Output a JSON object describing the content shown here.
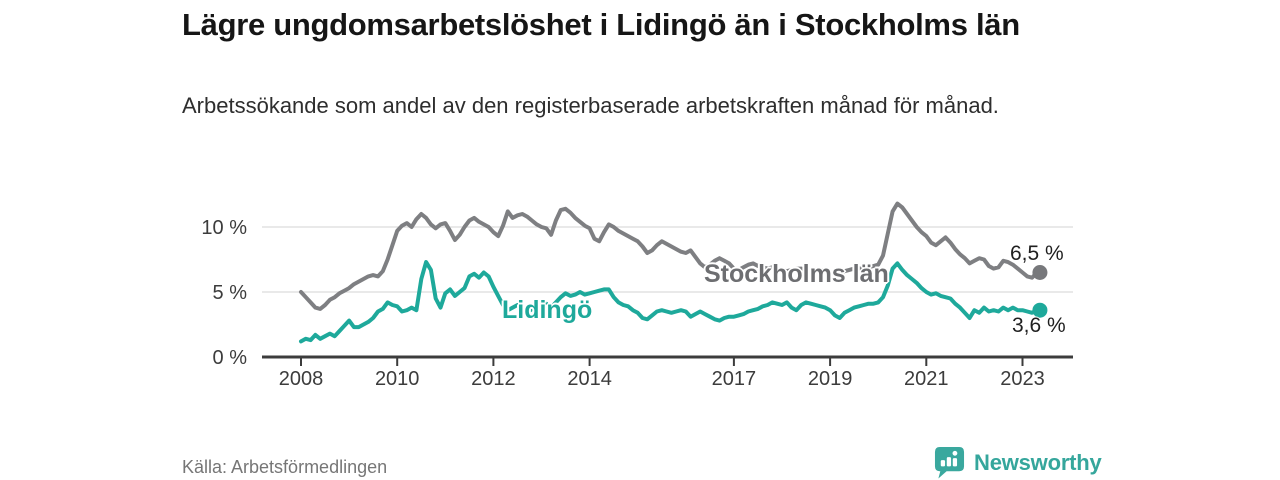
{
  "header": {
    "title": "Lägre ungdomsarbetslöshet i Lidingö än i Stockholms län",
    "subtitle": "Arbetssökande som andel av den registerbaserade arbetskraften månad för månad."
  },
  "footer": {
    "source": "Källa: Arbetsförmedlingen",
    "logo_text": "Newsworthy",
    "logo_icon": "bar-chart-speech-bubble-icon"
  },
  "colors": {
    "stockholm_line": "#7e7f82",
    "stockholm_label": "#6d6e71",
    "stockholm_dot": "#77787b",
    "lidingo_teal": "#1ea99b",
    "logo_teal": "#3aa89e",
    "axis_dark": "#3c3c3c",
    "gridline": "#dcdcdc",
    "axis_text": "#3c3c3c",
    "value_label_text": "#1f1f1f"
  },
  "chart_data": {
    "type": "line",
    "title": "Lägre ungdomsarbetslöshet i Lidingö än i Stockholms län",
    "subtitle": "Arbetssökande som andel av den registerbaserade arbetskraften månad för månad.",
    "unit": "%",
    "x_axis": {
      "ticks": [
        2008,
        2010,
        2012,
        2014,
        2017,
        2019,
        2021,
        2023
      ],
      "range": [
        2007.2,
        2024.05
      ]
    },
    "y_axis": {
      "ticks": [
        {
          "value": 0,
          "label": "0 %"
        },
        {
          "value": 5,
          "label": "5 %"
        },
        {
          "value": 10,
          "label": "10 %"
        }
      ],
      "range": [
        0,
        12.4
      ]
    },
    "legend_position": "inline-labels",
    "grid": "horizontal-only",
    "series": [
      {
        "name": "Stockholms län",
        "color": "#7e7f82",
        "end_label": "6,5 %",
        "last_value": 6.5,
        "start_year": 2008.0,
        "step_years": 0.1,
        "values": [
          5.0,
          4.6,
          4.2,
          3.8,
          3.7,
          4.0,
          4.4,
          4.6,
          4.9,
          5.1,
          5.3,
          5.6,
          5.8,
          6.0,
          6.2,
          6.3,
          6.2,
          6.6,
          7.5,
          8.6,
          9.7,
          10.1,
          10.3,
          10.0,
          10.6,
          11.0,
          10.7,
          10.2,
          9.9,
          10.2,
          10.3,
          9.7,
          9.0,
          9.4,
          10.0,
          10.5,
          10.7,
          10.4,
          10.2,
          10.0,
          9.6,
          9.3,
          10.1,
          11.2,
          10.7,
          10.9,
          11.0,
          10.8,
          10.5,
          10.2,
          10.0,
          9.9,
          9.4,
          10.5,
          11.3,
          11.4,
          11.1,
          10.7,
          10.4,
          10.1,
          9.9,
          9.1,
          8.9,
          9.6,
          10.2,
          10.0,
          9.7,
          9.5,
          9.3,
          9.1,
          8.9,
          8.5,
          8.0,
          8.2,
          8.6,
          8.9,
          8.7,
          8.5,
          8.3,
          8.1,
          8.0,
          8.2,
          7.7,
          7.2,
          6.9,
          7.1,
          7.4,
          7.6,
          7.4,
          7.2,
          6.8,
          6.7,
          6.9,
          7.1,
          7.2,
          7.0,
          6.9,
          6.8,
          6.9,
          6.8,
          6.7,
          6.6,
          6.7,
          6.8,
          6.8,
          6.7,
          6.6,
          6.7,
          6.7,
          6.6,
          6.5,
          6.4,
          6.5,
          6.6,
          6.7,
          6.8,
          6.8,
          6.9,
          6.9,
          7.0,
          7.1,
          7.8,
          9.5,
          11.2,
          11.8,
          11.5,
          11.0,
          10.5,
          10.0,
          9.6,
          9.3,
          8.8,
          8.6,
          8.9,
          9.2,
          8.8,
          8.3,
          7.9,
          7.6,
          7.2,
          7.4,
          7.6,
          7.5,
          7.0,
          6.8,
          6.9,
          7.4,
          7.3,
          7.1,
          6.8,
          6.5,
          6.2,
          6.1,
          6.5
        ]
      },
      {
        "name": "Lidingö",
        "color": "#1ea99b",
        "end_label": "3,6 %",
        "last_value": 3.6,
        "start_year": 2008.0,
        "step_years": 0.1,
        "values": [
          1.2,
          1.4,
          1.3,
          1.7,
          1.4,
          1.6,
          1.8,
          1.6,
          2.0,
          2.4,
          2.8,
          2.3,
          2.3,
          2.5,
          2.7,
          3.0,
          3.5,
          3.7,
          4.2,
          4.0,
          3.9,
          3.5,
          3.6,
          3.8,
          3.6,
          6.0,
          7.3,
          6.7,
          4.5,
          3.8,
          4.9,
          5.2,
          4.7,
          5.0,
          5.3,
          6.2,
          6.4,
          6.1,
          6.5,
          6.2,
          5.4,
          4.7,
          4.0,
          3.6,
          3.8,
          4.0,
          3.6,
          3.4,
          3.7,
          3.6,
          3.7,
          4.1,
          3.8,
          4.2,
          4.6,
          4.9,
          4.7,
          4.8,
          5.0,
          4.8,
          4.9,
          5.0,
          5.1,
          5.2,
          5.2,
          4.6,
          4.2,
          4.0,
          3.9,
          3.6,
          3.4,
          3.0,
          2.9,
          3.2,
          3.5,
          3.6,
          3.5,
          3.4,
          3.5,
          3.6,
          3.5,
          3.1,
          3.3,
          3.5,
          3.3,
          3.1,
          2.9,
          2.8,
          3.0,
          3.1,
          3.1,
          3.2,
          3.3,
          3.5,
          3.6,
          3.7,
          3.9,
          4.0,
          4.2,
          4.1,
          4.0,
          4.2,
          3.8,
          3.6,
          4.0,
          4.2,
          4.1,
          4.0,
          3.9,
          3.8,
          3.6,
          3.2,
          3.0,
          3.4,
          3.6,
          3.8,
          3.9,
          4.0,
          4.1,
          4.1,
          4.2,
          4.6,
          5.5,
          6.8,
          7.2,
          6.7,
          6.3,
          6.0,
          5.7,
          5.3,
          5.0,
          4.8,
          4.9,
          4.7,
          4.6,
          4.5,
          4.1,
          3.8,
          3.4,
          3.0,
          3.6,
          3.4,
          3.8,
          3.5,
          3.6,
          3.5,
          3.8,
          3.6,
          3.8,
          3.6,
          3.6,
          3.5,
          3.4,
          3.6
        ]
      }
    ]
  }
}
